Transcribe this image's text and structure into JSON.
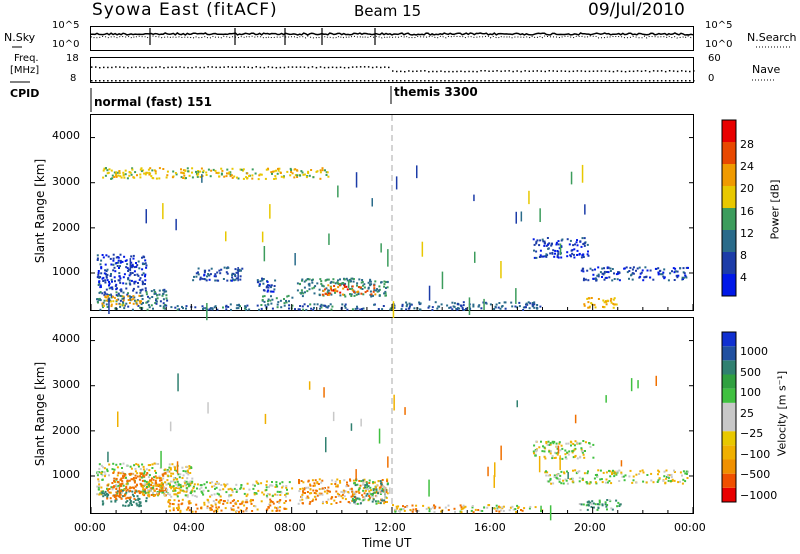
{
  "header": {
    "station": "Syowa East (fitACF)",
    "beam": "Beam 15",
    "date": "09/Jul/2010"
  },
  "noise_panel": {
    "left_label": "N.Sky",
    "right_label": "N.Search",
    "tick_top": "10^5",
    "tick_bottom": "10^0"
  },
  "freq_panel": {
    "left_label_1": "Freq.",
    "left_label_2": "[MHz]",
    "right_label": "Nave",
    "left_tick_top": "18",
    "left_tick_bottom": "8",
    "right_tick_top": "60",
    "right_tick_bottom": "0"
  },
  "cpid": {
    "label": "CPID",
    "modes": [
      {
        "name": "normal (fast) 151",
        "start_hour": 0
      },
      {
        "name": "themis 3300",
        "start_hour": 12
      }
    ]
  },
  "x_axis": {
    "label": "Time UT",
    "ticks": [
      "00:00",
      "04:00",
      "08:00",
      "12:00",
      "16:00",
      "20:00",
      "00:00"
    ],
    "range_hours": [
      0,
      24
    ]
  },
  "colorbars": {
    "power": {
      "label": "Power [dB]",
      "ticks": [
        "28",
        "24",
        "20",
        "16",
        "12",
        "8",
        "4"
      ],
      "colors": [
        "#0018e8",
        "#1c3ca8",
        "#2a6b8a",
        "#3c9c5c",
        "#e8c800",
        "#f09a00",
        "#e84800",
        "#e80000"
      ]
    },
    "velocity": {
      "label": "Velocity [m s⁻¹]",
      "ticks": [
        "1000",
        "500",
        "100",
        "25",
        "−25",
        "−100",
        "−500",
        "−1000"
      ],
      "colors": [
        "#e80000",
        "#f05000",
        "#f09000",
        "#f0b000",
        "#e8c800",
        "#c8c8c8",
        "#c8c8c8",
        "#40c040",
        "#30a040",
        "#308070",
        "#2050a0",
        "#1030d0"
      ]
    }
  },
  "chart_data": [
    {
      "type": "heatmap",
      "title": "Power",
      "ylabel": "Slant Range [km]",
      "xlabel": "",
      "x_range_hours": [
        0,
        24
      ],
      "ylim": [
        180,
        4500
      ],
      "y_ticks": [
        1000,
        2000,
        3000,
        4000
      ],
      "value_label": "Power [dB]",
      "regions": [
        {
          "x": [
            0.2,
            2.2
          ],
          "y": [
            650,
            1450
          ],
          "value": 5
        },
        {
          "x": [
            0.2,
            3.0
          ],
          "y": [
            200,
            650
          ],
          "value": 10
        },
        {
          "x": [
            0.4,
            2.0
          ],
          "y": [
            280,
            520
          ],
          "value": 20
        },
        {
          "x": [
            4.0,
            6.0
          ],
          "y": [
            850,
            1150
          ],
          "value": 7
        },
        {
          "x": [
            6.6,
            7.3
          ],
          "y": [
            600,
            900
          ],
          "value": 6
        },
        {
          "x": [
            6.8,
            8.0
          ],
          "y": [
            330,
            520
          ],
          "value": 12
        },
        {
          "x": [
            8.2,
            11.8
          ],
          "y": [
            500,
            900
          ],
          "value": 12
        },
        {
          "x": [
            9.2,
            11.4
          ],
          "y": [
            530,
            750
          ],
          "value": 26
        },
        {
          "x": [
            3.0,
            12.0
          ],
          "y": [
            200,
            330
          ],
          "value": 9
        },
        {
          "x": [
            12.0,
            18.0
          ],
          "y": [
            200,
            380
          ],
          "value": 8
        },
        {
          "x": [
            17.6,
            19.8
          ],
          "y": [
            1350,
            1800
          ],
          "value": 5
        },
        {
          "x": [
            19.5,
            23.8
          ],
          "y": [
            850,
            1150
          ],
          "value": 6
        },
        {
          "x": [
            19.6,
            21.0
          ],
          "y": [
            250,
            480
          ],
          "value": 20
        },
        {
          "x": [
            0.4,
            9.5
          ],
          "y": [
            3100,
            3350
          ],
          "value": 18
        }
      ]
    },
    {
      "type": "heatmap",
      "title": "Velocity",
      "ylabel": "Slant Range [km]",
      "xlabel": "Time UT",
      "x_range_hours": [
        0,
        24
      ],
      "ylim": [
        180,
        4500
      ],
      "y_ticks": [
        1000,
        2000,
        3000,
        4000
      ],
      "value_label": "Velocity [m s⁻¹]",
      "regions": [
        {
          "x": [
            0.2,
            4.0
          ],
          "y": [
            600,
            1300
          ],
          "value": 0
        },
        {
          "x": [
            0.4,
            2.2
          ],
          "y": [
            350,
            700
          ],
          "value": 200
        },
        {
          "x": [
            0.6,
            3.0
          ],
          "y": [
            500,
            1100
          ],
          "value": -300
        },
        {
          "x": [
            2.0,
            8.0
          ],
          "y": [
            550,
            900
          ],
          "value": 0
        },
        {
          "x": [
            3.0,
            8.0
          ],
          "y": [
            220,
            500
          ],
          "value": -100
        },
        {
          "x": [
            8.2,
            11.8
          ],
          "y": [
            400,
            950
          ],
          "value": -80
        },
        {
          "x": [
            10.4,
            11.8
          ],
          "y": [
            400,
            950
          ],
          "value": 60
        },
        {
          "x": [
            12.0,
            18.0
          ],
          "y": [
            220,
            380
          ],
          "value": -50
        },
        {
          "x": [
            18.0,
            23.8
          ],
          "y": [
            850,
            1150
          ],
          "value": 0
        },
        {
          "x": [
            19.4,
            21.2
          ],
          "y": [
            260,
            500
          ],
          "value": 100
        },
        {
          "x": [
            17.6,
            20.0
          ],
          "y": [
            1400,
            1800
          ],
          "value": 0
        }
      ]
    }
  ]
}
